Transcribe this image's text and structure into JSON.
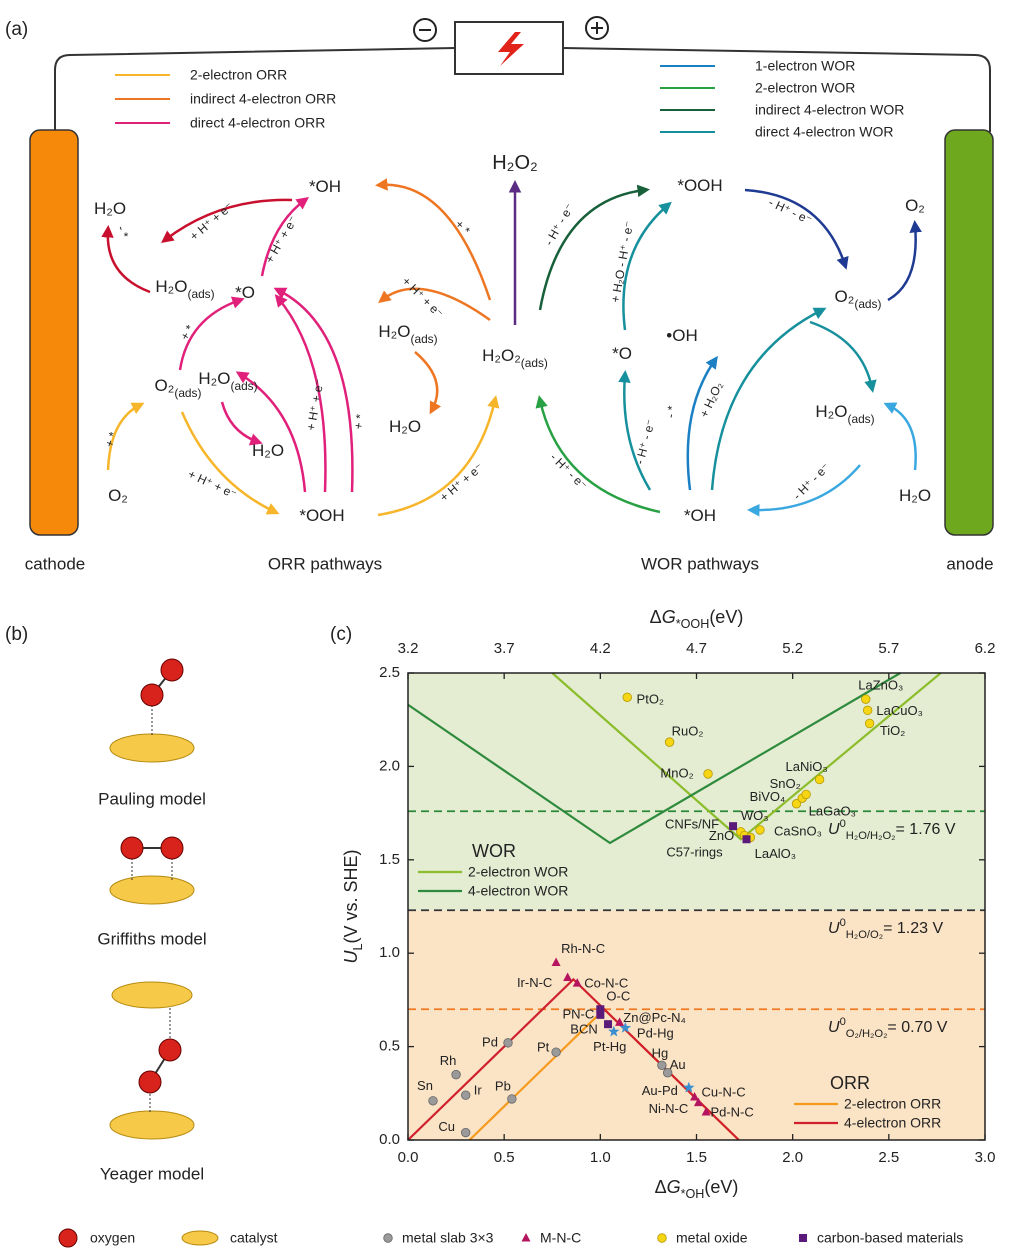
{
  "panel_a": {
    "label": "(a)",
    "legend_orr": [
      {
        "name": "2-electron ORR",
        "color": "#f7b52a"
      },
      {
        "name": "indirect 4-electron ORR",
        "color": "#ee7623"
      },
      {
        "name": "direct 4-electron ORR",
        "color": "#e0207a"
      }
    ],
    "legend_wor": [
      {
        "name": "1-electron WOR",
        "color": "#1b7fc4"
      },
      {
        "name": "2-electron WOR",
        "color": "#27a143"
      },
      {
        "name": "indirect 4-electron WOR",
        "color": "#17603a"
      },
      {
        "name": "direct 4-electron WOR",
        "color": "#16909c"
      }
    ],
    "species": [
      {
        "text": "H₂O"
      },
      {
        "text": "*OH"
      },
      {
        "text": "H₂O",
        "sub": "(ads)"
      },
      {
        "text": "*O"
      },
      {
        "text": "O₂",
        "sub": "(ads)"
      },
      {
        "text": "H₂O",
        "sub": "(ads)"
      },
      {
        "text": "H₂O"
      },
      {
        "text": "O₂"
      },
      {
        "text": "*OOH"
      },
      {
        "text": "H₂O",
        "sub": "(ads)"
      },
      {
        "text": "H₂O"
      },
      {
        "text": "H₂O₂",
        "color": "#d2171e"
      },
      {
        "text": "H₂O₂",
        "sub": "(ads)"
      },
      {
        "text": "*OOH"
      },
      {
        "text": "O₂"
      },
      {
        "text": "O₂",
        "sub": "(ads)"
      },
      {
        "text": "•OH"
      },
      {
        "text": "*O"
      },
      {
        "text": "H₂O",
        "sub": "(ads)"
      },
      {
        "text": "*OH"
      },
      {
        "text": "H₂O"
      }
    ],
    "steps": [
      "- *",
      "+ H⁺ + e⁻",
      "+ H⁺ + e⁻",
      "+ *",
      "+ *",
      "+ H⁺ + e⁻",
      "+ H⁺ + e⁻",
      "+ *",
      "+ *",
      "+ H⁺ + e⁻",
      "+ H⁺ + e⁻",
      "- H⁺ - e⁻",
      "+ H₂O - H⁺ - e⁻",
      "- H⁺ - e⁻",
      "- H⁺ - e⁻",
      "- H⁺ - e⁻",
      "- *",
      "+ H₂O₂",
      "- H⁺ - e⁻"
    ],
    "electrodes": [
      "cathode",
      "anode"
    ],
    "pathway_titles": [
      "ORR pathways",
      "WOR pathways"
    ]
  },
  "panel_b": {
    "label": "(b)",
    "models": [
      "Pauling model",
      "Griffiths model",
      "Yeager model"
    ],
    "legend": [
      "oxygen",
      "catalyst"
    ]
  },
  "chart_data": {
    "type": "scatter",
    "panel_label": "(c)",
    "x_label": {
      "delta": "Δ",
      "symbol": "G",
      "subscript": "*OH",
      "unit": "(eV)"
    },
    "x2_label": {
      "delta": "Δ",
      "symbol": "G",
      "subscript": "*OOH",
      "unit": "(eV)"
    },
    "y_label": {
      "symbol": "U",
      "subscript": "L",
      "unit": "(V vs. SHE)"
    },
    "xlim": [
      0,
      3.0
    ],
    "xticks": [
      {
        "value": 0,
        "label": "0.0"
      },
      0.5,
      {
        "value": 1,
        "label": "1.0"
      },
      1.5,
      {
        "value": 2,
        "label": "2.0"
      },
      2.5,
      {
        "value": 3,
        "label": "3.0"
      }
    ],
    "x2lim": [
      3.2,
      6.2
    ],
    "x2ticks": [
      3.2,
      3.7,
      4.2,
      4.7,
      5.2,
      5.7,
      6.2
    ],
    "ylim": [
      0,
      2.5
    ],
    "yticks": [
      {
        "value": 0,
        "label": "0.0"
      },
      0.5,
      {
        "value": 1,
        "label": "1.0"
      },
      1.5,
      {
        "value": 2,
        "label": "2.0"
      },
      2.5
    ],
    "ref_lines": [
      {
        "value": 1.76,
        "color": "#2a8a3a",
        "symbol": "U",
        "superscript": "0",
        "subscript": "H₂O/H₂O₂",
        "text": "= 1.76 V"
      },
      {
        "value": 1.23,
        "color": "#333333",
        "symbol": "U",
        "superscript": "0",
        "subscript": "H₂O/O₂",
        "text": "= 1.23 V",
        "fill_below": "#fbe3c6",
        "fill_above": "#e4ecd2"
      },
      {
        "value": 0.7,
        "color": "#f07a22",
        "symbol": "U",
        "superscript": "0",
        "subscript": "O₂/H₂O₂",
        "text": "= 0.70 V"
      }
    ],
    "line_groups": [
      {
        "title": "WOR",
        "series": [
          {
            "name": "2-electron WOR",
            "color": "#8cbd2b",
            "x": [
              0.75,
              1.73,
              2.77
            ],
            "values": [
              2.5,
              1.61,
              2.5
            ]
          },
          {
            "name": "4-electron WOR",
            "color": "#2e8b3d",
            "x": [
              0,
              1.05,
              2.56
            ],
            "values": [
              2.33,
              1.59,
              2.5
            ]
          }
        ]
      },
      {
        "title": "ORR",
        "series": [
          {
            "name": "2-electron ORR",
            "color": "#f59a1c",
            "x": [
              0.32,
              1.02,
              1.72
            ],
            "values": [
              0,
              0.7,
              0
            ]
          },
          {
            "name": "4-electron ORR",
            "color": "#d0202e",
            "x": [
              0,
              0.86,
              1.72
            ],
            "values": [
              0,
              0.86,
              0
            ]
          }
        ]
      }
    ],
    "series": [
      {
        "name": "metal slab 3×3",
        "marker": "circle",
        "color": "#9a9a9a",
        "labels": [
          "Sn",
          "Cu",
          "Rh",
          "Ir",
          "Pd",
          "Pb",
          "Pt",
          "Hg",
          "Au"
        ],
        "x": [
          0.13,
          0.3,
          0.25,
          0.3,
          0.52,
          0.54,
          0.77,
          1.32,
          1.35
        ],
        "values": [
          0.21,
          0.04,
          0.35,
          0.24,
          0.52,
          0.22,
          0.47,
          0.4,
          0.36
        ]
      },
      {
        "name": "M-N-C",
        "marker": "triangle",
        "color": "#b5155e",
        "labels": [
          "Rh-N-C",
          "Ir-N-C",
          "Co-N-C",
          "Zn@Pc-N₄",
          "Cu-N-C",
          "Ni-N-C",
          "Pd-N-C"
        ],
        "x": [
          0.77,
          0.83,
          0.88,
          1.1,
          1.49,
          1.51,
          1.55
        ],
        "values": [
          0.95,
          0.87,
          0.84,
          0.63,
          0.23,
          0.2,
          0.15
        ]
      },
      {
        "name": "metal oxide",
        "marker": "circle",
        "color": "#f6d515",
        "labels": [
          "PtO₂",
          "RuO₂",
          "MnO₂",
          "WO₃",
          "ZnO",
          "LaAlO₃",
          "CaSnO₃",
          "BiVO₄",
          "LaGaO₃",
          "SnO₂",
          "LaNiO₃",
          "LaZnO₃",
          "LaCuO₃",
          "TiO₂"
        ],
        "x": [
          1.14,
          1.36,
          1.56,
          1.73,
          1.75,
          1.78,
          1.83,
          2.02,
          2.05,
          2.07,
          2.14,
          2.38,
          2.39,
          2.4
        ],
        "values": [
          2.37,
          2.13,
          1.96,
          1.65,
          1.63,
          1.62,
          1.66,
          1.8,
          1.83,
          1.85,
          1.93,
          2.36,
          2.3,
          2.23
        ]
      },
      {
        "name": "carbon-based materials",
        "marker": "square",
        "color": "#5b1a7a",
        "labels": [
          "CNFs/NF",
          "C57-rings",
          "O-C",
          "PN-C",
          "BCN"
        ],
        "x": [
          1.69,
          1.76,
          1.0,
          1.0,
          1.04
        ],
        "values": [
          1.68,
          1.61,
          0.7,
          0.67,
          0.62
        ]
      },
      {
        "marker": "star",
        "color": "#3b8fd0",
        "labels": [
          "Pt-Hg",
          "Pd-Hg",
          "Au-Pd"
        ],
        "x": [
          1.07,
          1.13,
          1.46
        ],
        "values": [
          0.58,
          0.6,
          0.28
        ]
      }
    ]
  }
}
